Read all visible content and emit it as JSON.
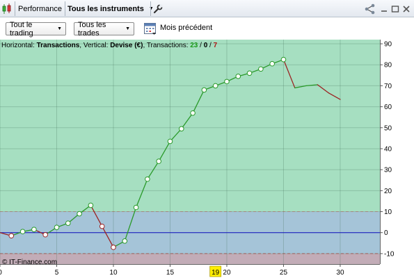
{
  "titlebar": {
    "tab_title": "Performance",
    "instrument_label": "Tous les instruments",
    "icons": [
      "candlestick-icon",
      "wrench-icon",
      "share-icon",
      "minimize-icon",
      "maximize-icon",
      "close-icon"
    ]
  },
  "toolbar": {
    "trading_filter": "Tout le trading",
    "trades_filter": "Tous les trades",
    "period_label": "Mois précédent"
  },
  "chart_header": {
    "horizontal_prefix": "Horizontal: ",
    "horizontal_value": "Transactions",
    "vertical_prefix": ", Vertical: ",
    "vertical_value": "Devise (€)",
    "transactions_prefix": ", Transactions: ",
    "count_total": "23",
    "slash1": " / ",
    "count_zero": "0",
    "slash2": " / ",
    "count_losing": "7"
  },
  "watermark": "© IT-Finance.com",
  "colors": {
    "gain_zone": "#a6dfc1",
    "neutral_zone": "#a5c4d8",
    "loss_zone": "#c2acb7",
    "gain_line": "#2a9a2a",
    "loss_line": "#9c2222",
    "zero_line": "#1010c0",
    "highlight": "#ffee00"
  },
  "chart_data": {
    "type": "line",
    "xlabel": "",
    "ylabel": "",
    "x": [
      0,
      1,
      2,
      3,
      4,
      5,
      6,
      7,
      8,
      9,
      10,
      11,
      12,
      13,
      14,
      15,
      16,
      17,
      18,
      19,
      20,
      21,
      22,
      23,
      24,
      25,
      26,
      27,
      28,
      29,
      30
    ],
    "values": [
      0,
      -1.5,
      0.5,
      1.5,
      -1,
      2.5,
      4.5,
      9,
      13,
      3,
      -7,
      -4,
      12,
      25.5,
      34,
      43.5,
      49.5,
      57,
      68,
      70,
      72,
      74.5,
      76,
      78,
      80.5,
      82.5,
      69,
      70,
      70.5,
      66.5,
      63.5
    ],
    "markers_to": 25,
    "xlim": [
      0,
      33.5
    ],
    "ylim": [
      -15,
      92
    ],
    "yticks": [
      -10,
      0,
      10,
      20,
      30,
      40,
      50,
      60,
      70,
      80,
      90
    ],
    "xticks": [
      0,
      5,
      10,
      15,
      20,
      25,
      30
    ],
    "highlighted_x": 19,
    "zones": {
      "upper": 10,
      "lower": -10
    },
    "grid": true
  }
}
